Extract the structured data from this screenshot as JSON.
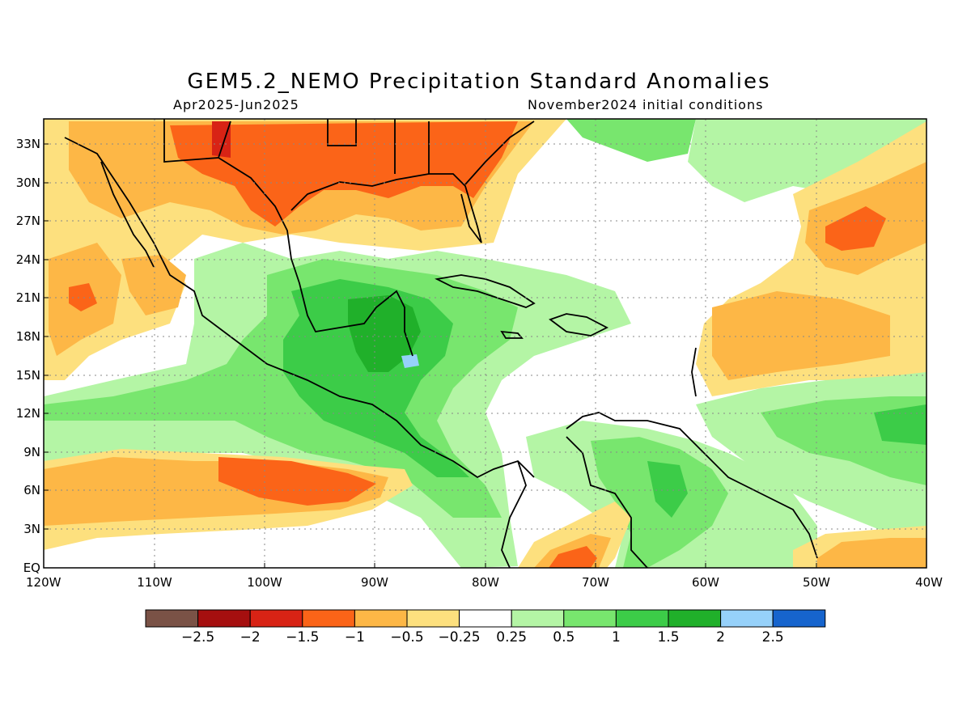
{
  "title": "GEM5.2_NEMO Precipitation Standard Anomalies",
  "period": "Apr2025-Jun2025",
  "initial_conditions": "November2024 initial conditions",
  "map": {
    "lat_labels": [
      "33N",
      "30N",
      "27N",
      "24N",
      "21N",
      "18N",
      "15N",
      "12N",
      "9N",
      "6N",
      "3N",
      "EQ"
    ],
    "lon_labels": [
      "120W",
      "110W",
      "100W",
      "90W",
      "80W",
      "70W",
      "60W",
      "50W",
      "40W"
    ],
    "colors": {
      "strong_dry_darkest": "#7a5246",
      "dry_darkred": "#a50f0f",
      "dry_red": "#d82315",
      "dry_orange": "#fb6418",
      "dry_lightorange": "#fdb746",
      "dry_yellow": "#fde07e",
      "neutral": "#ffffff",
      "wet_lightgreen": "#b4f5a5",
      "wet_green": "#78e66e",
      "wet_midgreen": "#3ccc48",
      "wet_darkgreen": "#20b02a",
      "wet_lightblue": "#96d1fa",
      "wet_blue": "#1664cd"
    }
  },
  "colorbar": {
    "colors": [
      "#7a5246",
      "#a50f0f",
      "#d82315",
      "#fb6418",
      "#fdb746",
      "#fde07e",
      "#ffffff",
      "#b4f5a5",
      "#78e66e",
      "#3ccc48",
      "#20b02a",
      "#96d1fa",
      "#1664cd"
    ],
    "labels": [
      "−2.5",
      "−2",
      "−1.5",
      "−1",
      "−0.5",
      "−0.25",
      "0.25",
      "0.5",
      "1",
      "1.5",
      "2",
      "2.5"
    ]
  }
}
